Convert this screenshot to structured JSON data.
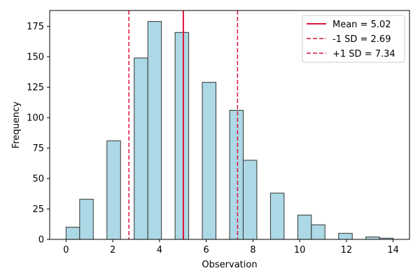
{
  "chart_data": {
    "type": "bar",
    "title": "",
    "xlabel": "Observation",
    "ylabel": "Frequency",
    "xlim": [
      -0.7,
      14.7
    ],
    "ylim": [
      0,
      188
    ],
    "xticks": [
      0,
      2,
      4,
      6,
      8,
      10,
      12,
      14
    ],
    "yticks": [
      0,
      25,
      50,
      75,
      100,
      125,
      150,
      175
    ],
    "bin_width": 0.583,
    "bins": [
      {
        "start": 0.0,
        "value": 10
      },
      {
        "start": 0.583,
        "value": 33
      },
      {
        "start": 1.75,
        "value": 81
      },
      {
        "start": 2.917,
        "value": 149
      },
      {
        "start": 3.5,
        "value": 179
      },
      {
        "start": 4.667,
        "value": 170
      },
      {
        "start": 5.833,
        "value": 129
      },
      {
        "start": 7.0,
        "value": 106
      },
      {
        "start": 7.583,
        "value": 65
      },
      {
        "start": 8.75,
        "value": 38
      },
      {
        "start": 9.917,
        "value": 20
      },
      {
        "start": 10.5,
        "value": 12
      },
      {
        "start": 11.667,
        "value": 5
      },
      {
        "start": 12.833,
        "value": 2
      },
      {
        "start": 13.417,
        "value": 1
      }
    ],
    "reference_lines": [
      {
        "label": "Mean = 5.02",
        "x": 5.02,
        "style": "solid",
        "color": "#dc143c"
      },
      {
        "label": "-1 SD = 2.69",
        "x": 2.69,
        "style": "dashed",
        "color": "#dc143c"
      },
      {
        "label": "+1 SD = 7.34",
        "x": 7.34,
        "style": "dashed",
        "color": "#dc143c"
      }
    ],
    "bar_color": "#add8e6",
    "bar_edge_color": "#333333",
    "grid": false,
    "legend_position": "top-right"
  }
}
